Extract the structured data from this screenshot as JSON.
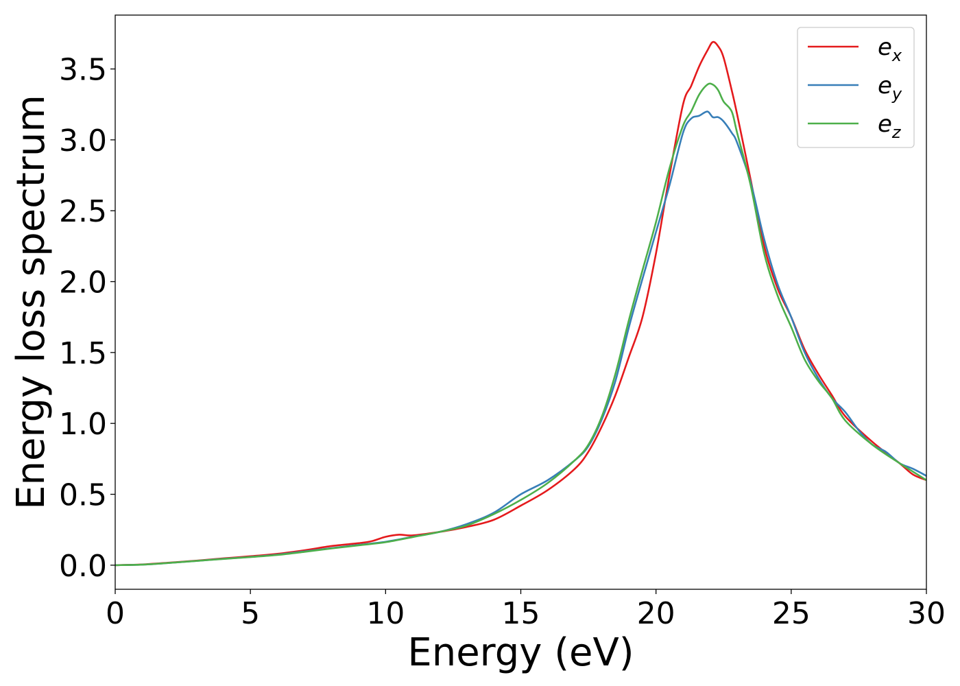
{
  "chart_data": {
    "type": "line",
    "title": "",
    "xlabel": "Energy (eV)",
    "ylabel": "Energy loss spectrum",
    "xlim": [
      0,
      30
    ],
    "ylim": [
      -0.17,
      3.88
    ],
    "xticks": [
      0,
      5,
      10,
      15,
      20,
      25,
      30
    ],
    "xtick_labels": [
      "0",
      "5",
      "10",
      "15",
      "20",
      "25",
      "30"
    ],
    "yticks": [
      0.0,
      0.5,
      1.0,
      1.5,
      2.0,
      2.5,
      3.0,
      3.5
    ],
    "ytick_labels": [
      "0.0",
      "0.5",
      "1.0",
      "1.5",
      "2.0",
      "2.5",
      "3.0",
      "3.5"
    ],
    "grid": false,
    "legend_position": "top-right",
    "series": [
      {
        "name": "e_x",
        "base": "e",
        "sub": "x",
        "color": "#e41a1c",
        "x": [
          0,
          1,
          2,
          3,
          4,
          5,
          6,
          7,
          8,
          9,
          9.5,
          10,
          10.5,
          11,
          12,
          13,
          14,
          15,
          16,
          17,
          17.5,
          18,
          18.5,
          19,
          19.5,
          20,
          20.5,
          21,
          21.3,
          21.6,
          21.9,
          22.1,
          22.3,
          22.5,
          22.8,
          23,
          23.5,
          24,
          24.5,
          25,
          25.5,
          26,
          26.5,
          27,
          28,
          29,
          29.5,
          30
        ],
        "y": [
          0.0,
          0.005,
          0.018,
          0.032,
          0.048,
          0.063,
          0.08,
          0.105,
          0.135,
          0.155,
          0.17,
          0.2,
          0.215,
          0.21,
          0.235,
          0.27,
          0.32,
          0.42,
          0.53,
          0.68,
          0.8,
          0.98,
          1.2,
          1.47,
          1.75,
          2.2,
          2.75,
          3.25,
          3.38,
          3.52,
          3.63,
          3.69,
          3.66,
          3.58,
          3.35,
          3.18,
          2.72,
          2.25,
          1.95,
          1.75,
          1.52,
          1.35,
          1.2,
          1.05,
          0.87,
          0.72,
          0.64,
          0.6
        ]
      },
      {
        "name": "e_y",
        "base": "e",
        "sub": "y",
        "color": "#377eb8",
        "x": [
          0,
          1,
          2,
          3,
          4,
          5,
          6,
          7,
          8,
          9,
          10,
          11,
          12,
          13,
          14,
          15,
          16,
          17,
          17.5,
          18,
          18.5,
          19,
          19.5,
          20,
          20.5,
          21,
          21.3,
          21.6,
          21.9,
          22.1,
          22.3,
          22.5,
          22.8,
          23,
          23.5,
          24,
          24.5,
          25,
          25.5,
          26,
          26.5,
          27,
          27.5,
          28,
          28.5,
          29,
          29.5,
          30
        ],
        "y": [
          0.0,
          0.004,
          0.016,
          0.03,
          0.045,
          0.058,
          0.074,
          0.097,
          0.12,
          0.143,
          0.165,
          0.2,
          0.235,
          0.29,
          0.37,
          0.5,
          0.6,
          0.74,
          0.84,
          1.03,
          1.3,
          1.68,
          2.02,
          2.35,
          2.68,
          3.05,
          3.15,
          3.17,
          3.2,
          3.16,
          3.16,
          3.13,
          3.05,
          2.98,
          2.7,
          2.3,
          1.98,
          1.75,
          1.5,
          1.32,
          1.18,
          1.08,
          0.95,
          0.85,
          0.8,
          0.72,
          0.68,
          0.63
        ]
      },
      {
        "name": "e_z",
        "base": "e",
        "sub": "z",
        "color": "#4daf4a",
        "x": [
          0,
          1,
          2,
          3,
          4,
          5,
          6,
          7,
          8,
          9,
          10,
          11,
          12,
          13,
          14,
          15,
          16,
          17,
          17.5,
          18,
          18.5,
          19,
          19.5,
          20,
          20.5,
          21,
          21.3,
          21.6,
          21.9,
          22.1,
          22.3,
          22.5,
          22.8,
          23,
          23.5,
          24,
          24.5,
          25,
          25.5,
          26,
          26.5,
          27,
          28,
          29,
          29.5,
          30
        ],
        "y": [
          0.0,
          0.004,
          0.016,
          0.03,
          0.044,
          0.057,
          0.072,
          0.094,
          0.118,
          0.14,
          0.162,
          0.198,
          0.235,
          0.28,
          0.36,
          0.46,
          0.58,
          0.74,
          0.85,
          1.05,
          1.35,
          1.73,
          2.08,
          2.42,
          2.8,
          3.1,
          3.2,
          3.32,
          3.39,
          3.39,
          3.35,
          3.27,
          3.2,
          3.05,
          2.68,
          2.2,
          1.9,
          1.68,
          1.45,
          1.3,
          1.18,
          1.02,
          0.85,
          0.72,
          0.66,
          0.6
        ]
      }
    ]
  }
}
